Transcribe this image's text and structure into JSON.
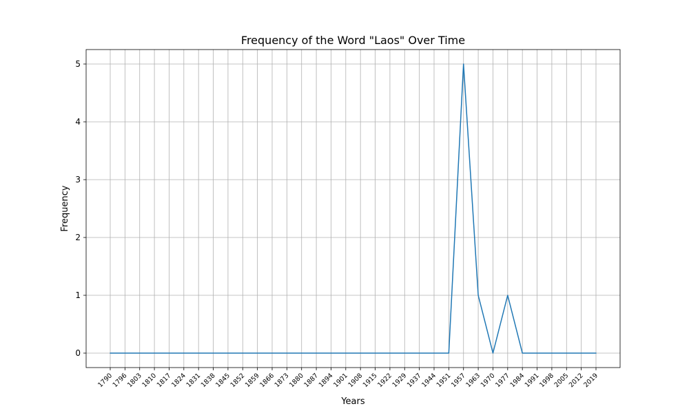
{
  "chart_data": {
    "type": "line",
    "title": "Frequency of the Word \"Laos\" Over Time",
    "xlabel": "Years",
    "ylabel": "Frequency",
    "x": [
      "1790",
      "1796",
      "1803",
      "1810",
      "1817",
      "1824",
      "1831",
      "1838",
      "1845",
      "1852",
      "1859",
      "1866",
      "1873",
      "1880",
      "1887",
      "1894",
      "1901",
      "1908",
      "1915",
      "1922",
      "1929",
      "1937",
      "1944",
      "1951",
      "1957",
      "1963",
      "1970",
      "1977",
      "1984",
      "1991",
      "1998",
      "2005",
      "2012",
      "2019"
    ],
    "series": [
      {
        "values": [
          0,
          0,
          0,
          0,
          0,
          0,
          0,
          0,
          0,
          0,
          0,
          0,
          0,
          0,
          0,
          0,
          0,
          0,
          0,
          0,
          0,
          0,
          0,
          0,
          5,
          1,
          0,
          1,
          0,
          0,
          0,
          0,
          0,
          0
        ],
        "color": "#1f77b4"
      }
    ],
    "yticks": [
      "0",
      "1",
      "2",
      "3",
      "4",
      "5"
    ],
    "ylim": [
      -0.25,
      5.25
    ],
    "grid": true,
    "legend": "none"
  }
}
